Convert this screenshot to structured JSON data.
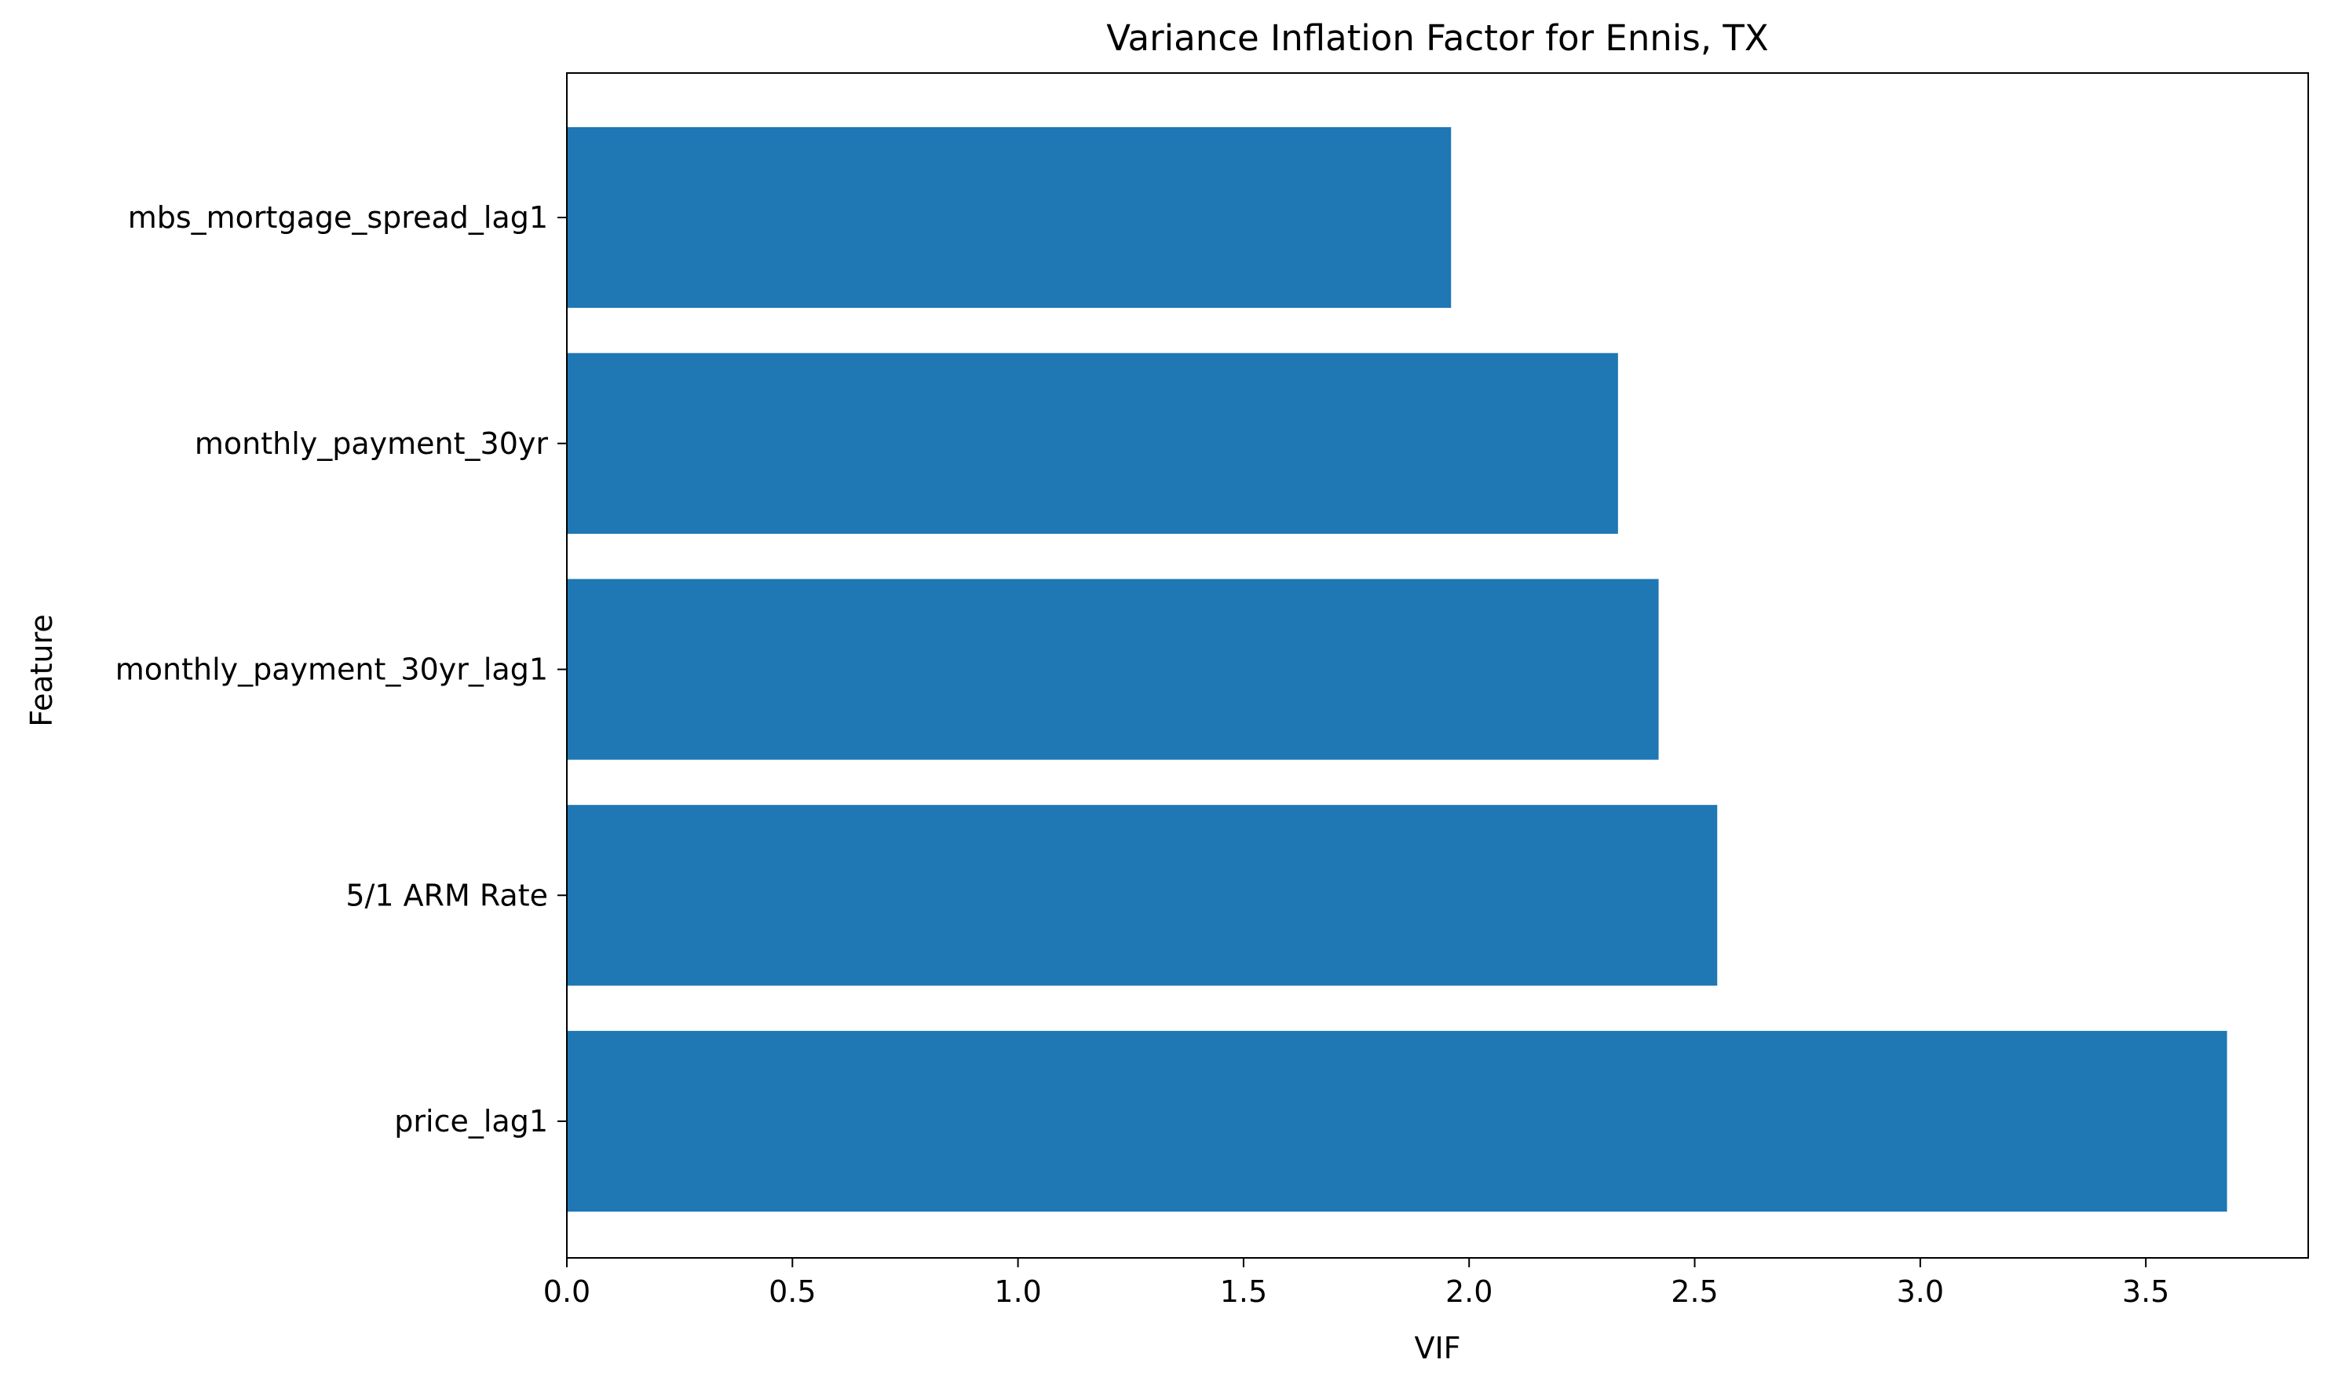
{
  "chart_data": {
    "type": "bar",
    "orientation": "horizontal",
    "title": "Variance Inflation Factor for Ennis, TX",
    "xlabel": "VIF",
    "ylabel": "Feature",
    "categories": [
      "price_lag1",
      "5/1 ARM Rate",
      "monthly_payment_30yr_lag1",
      "monthly_payment_30yr",
      "mbs_mortgage_spread_lag1"
    ],
    "values": [
      3.68,
      2.55,
      2.42,
      2.33,
      1.96
    ],
    "xlim": [
      0,
      3.86
    ],
    "xticks": [
      "0.0",
      "0.5",
      "1.0",
      "1.5",
      "2.0",
      "2.5",
      "3.0",
      "3.5"
    ],
    "grid": false,
    "legend": "none",
    "bar_color": "#1f77b4"
  }
}
